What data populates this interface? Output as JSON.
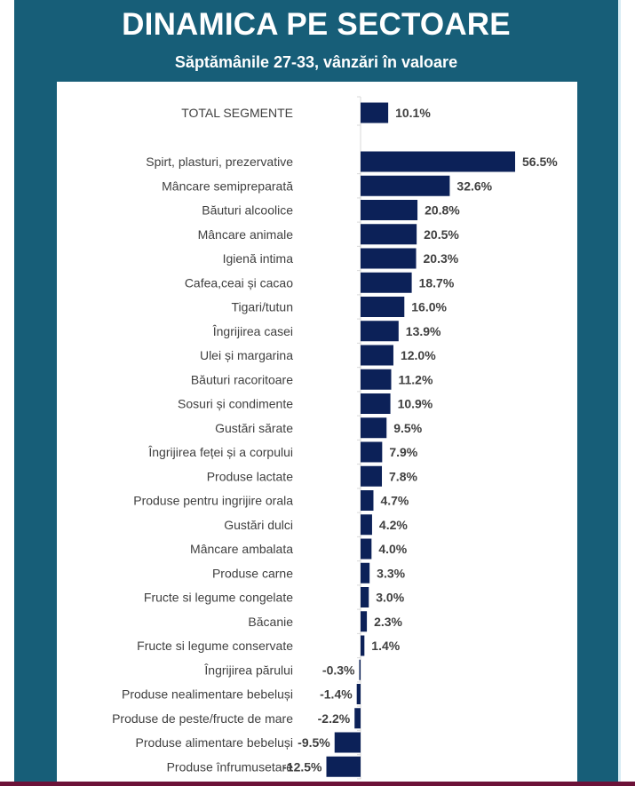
{
  "header": {
    "title": "DINAMICA PE SECTOARE",
    "subtitle": "Săptămânile 27-33, vânzări în valoare"
  },
  "colors": {
    "panel": "#175e78",
    "bar": "#0c2158",
    "bottom_line": "#6c1238"
  },
  "chart_data": {
    "type": "bar",
    "orientation": "horizontal",
    "title": "DINAMICA PE SECTOARE",
    "subtitle": "Săptămânile 27-33, vânzări în valoare",
    "xlabel": "",
    "ylabel": "",
    "unit": "%",
    "grid": false,
    "categories": [
      "TOTAL SEGMENTE",
      "Spirt, plasturi, prezervative",
      "Mâncare semipreparată",
      "Băuturi alcoolice",
      "Mâncare animale",
      "Igienă intima",
      "Cafea,ceai și cacao",
      "Tigari/tutun",
      "Îngrijirea casei",
      "Ulei și margarina",
      "Băuturi racoritoare",
      "Sosuri și condimente",
      "Gustări sărate",
      "Îngrijirea feței și a corpului",
      "Produse lactate",
      "Produse pentru ingrijire orala",
      "Gustări dulci",
      "Mâncare ambalata",
      "Produse carne",
      "Fructe si legume congelate",
      "Băcanie",
      "Fructe si legume conservate",
      "Îngrijirea părului",
      "Produse nealimentare bebeluși",
      "Produse de peste/fructe de mare",
      "Produse alimentare bebeluși",
      "Produse înfrumusetare"
    ],
    "values": [
      10.1,
      56.5,
      32.6,
      20.8,
      20.5,
      20.3,
      18.7,
      16.0,
      13.9,
      12.0,
      11.2,
      10.9,
      9.5,
      7.9,
      7.8,
      4.7,
      4.2,
      4.0,
      3.3,
      3.0,
      2.3,
      1.4,
      -0.3,
      -1.4,
      -2.2,
      -9.5,
      -12.5
    ],
    "labels": [
      "10.1%",
      "56.5%",
      "32.6%",
      "20.8%",
      "20.5%",
      "20.3%",
      "18.7%",
      "16.0%",
      "13.9%",
      "12.0%",
      "11.2%",
      "10.9%",
      "9.5%",
      "7.9%",
      "7.8%",
      "4.7%",
      "4.2%",
      "4.0%",
      "3.3%",
      "3.0%",
      "2.3%",
      "1.4%",
      "-0.3%",
      "-1.4%",
      "-2.2%",
      "-9.5%",
      "-12.5%"
    ],
    "xlim": [
      -13,
      57
    ]
  }
}
